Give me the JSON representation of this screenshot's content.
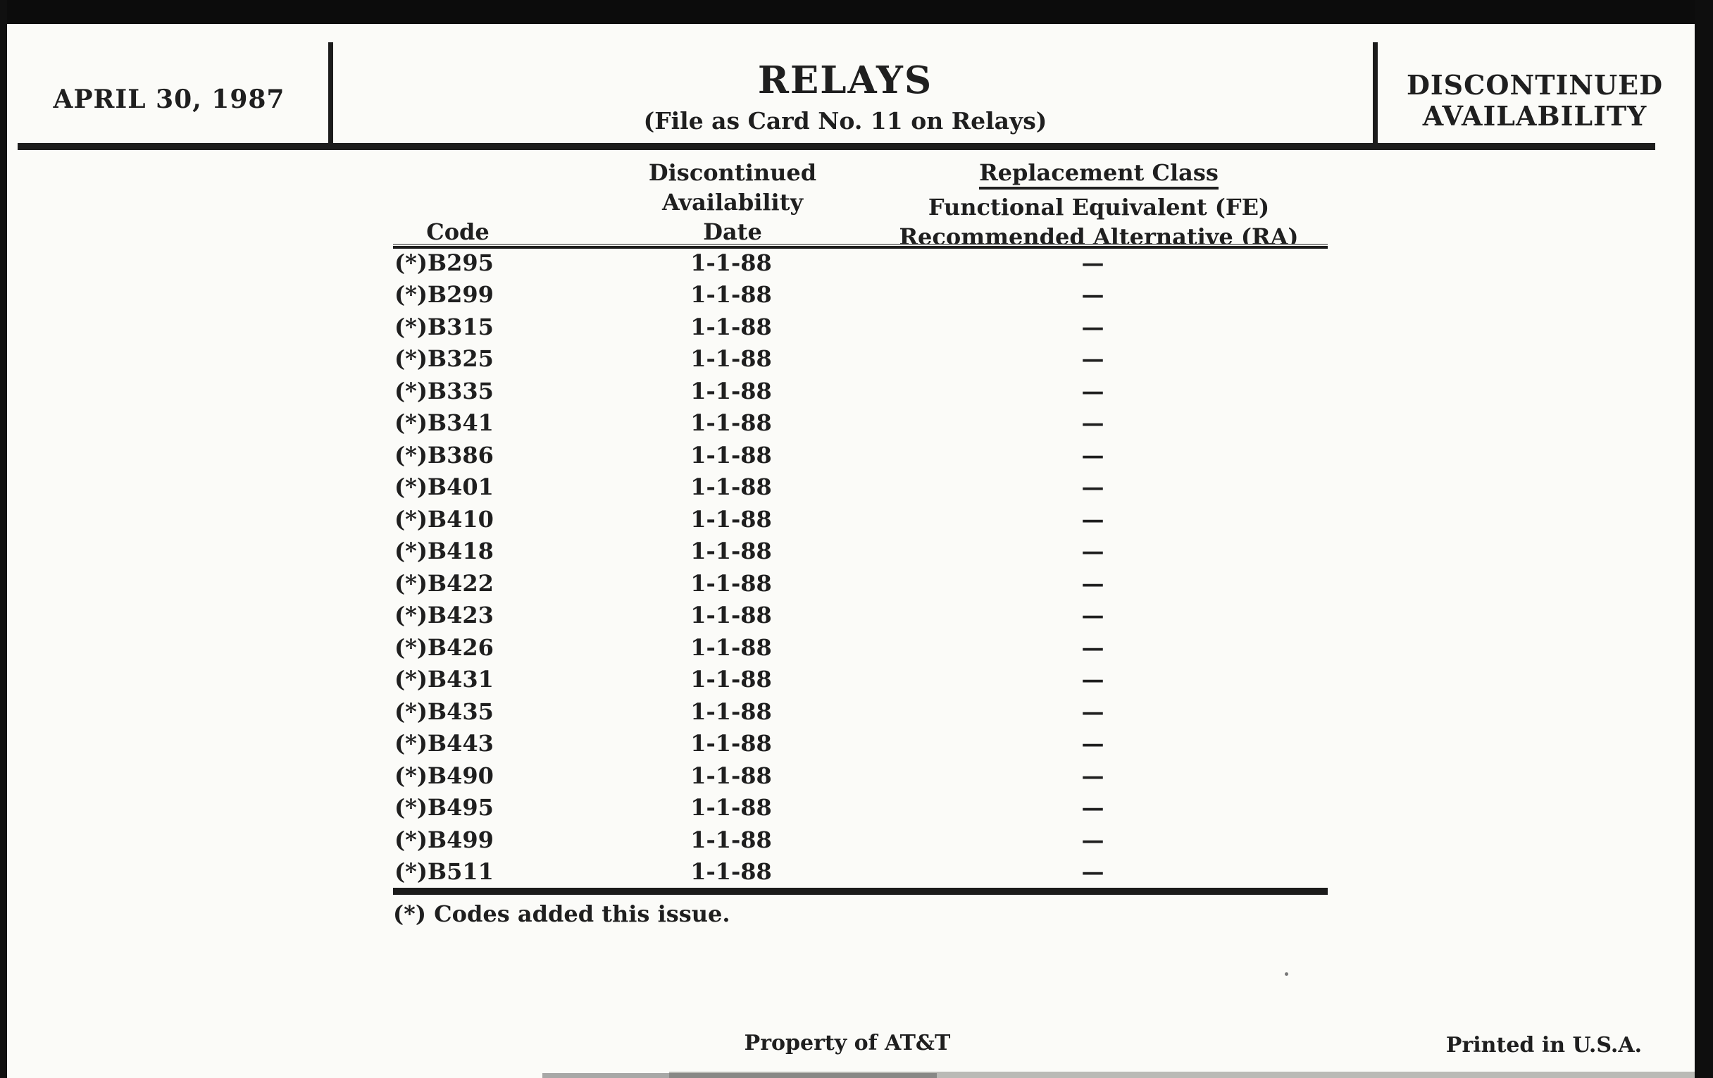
{
  "header": {
    "issue_date": "APRIL 30, 1987",
    "title": "RELAYS",
    "subtitle": "(File as Card No. 11 on Relays)",
    "corner_label_line1": "DISCONTINUED",
    "corner_label_line2": "AVAILABILITY"
  },
  "table": {
    "headers": {
      "code": "Code",
      "date_line1": "Discontinued",
      "date_line2": "Availability",
      "date_line3": "Date",
      "replacement_line1": "Replacement Class",
      "replacement_line2": "Functional Equivalent (FE)",
      "replacement_line3": "Recommended Alternative (RA)"
    },
    "rows": [
      {
        "code": "(*)B295",
        "date": "1-1-88",
        "replacement": "—"
      },
      {
        "code": "(*)B299",
        "date": "1-1-88",
        "replacement": "—"
      },
      {
        "code": "(*)B315",
        "date": "1-1-88",
        "replacement": "—"
      },
      {
        "code": "(*)B325",
        "date": "1-1-88",
        "replacement": "—"
      },
      {
        "code": "(*)B335",
        "date": "1-1-88",
        "replacement": "—"
      },
      {
        "code": "(*)B341",
        "date": "1-1-88",
        "replacement": "—"
      },
      {
        "code": "(*)B386",
        "date": "1-1-88",
        "replacement": "—"
      },
      {
        "code": "(*)B401",
        "date": "1-1-88",
        "replacement": "—"
      },
      {
        "code": "(*)B410",
        "date": "1-1-88",
        "replacement": "—"
      },
      {
        "code": "(*)B418",
        "date": "1-1-88",
        "replacement": "—"
      },
      {
        "code": "(*)B422",
        "date": "1-1-88",
        "replacement": "—"
      },
      {
        "code": "(*)B423",
        "date": "1-1-88",
        "replacement": "—"
      },
      {
        "code": "(*)B426",
        "date": "1-1-88",
        "replacement": "—"
      },
      {
        "code": "(*)B431",
        "date": "1-1-88",
        "replacement": "—"
      },
      {
        "code": "(*)B435",
        "date": "1-1-88",
        "replacement": "—"
      },
      {
        "code": "(*)B443",
        "date": "1-1-88",
        "replacement": "—"
      },
      {
        "code": "(*)B490",
        "date": "1-1-88",
        "replacement": "—"
      },
      {
        "code": "(*)B495",
        "date": "1-1-88",
        "replacement": "—"
      },
      {
        "code": "(*)B499",
        "date": "1-1-88",
        "replacement": "—"
      },
      {
        "code": "(*)B511",
        "date": "1-1-88",
        "replacement": "—"
      }
    ],
    "footnote": "(*) Codes added this issue."
  },
  "footer": {
    "property": "Property of AT&T",
    "printed": "Printed in U.S.A."
  },
  "colors": {
    "paper": "#fbfbf8",
    "ink": "#1f1f1f",
    "scan_edge": "#0c0c0c"
  }
}
